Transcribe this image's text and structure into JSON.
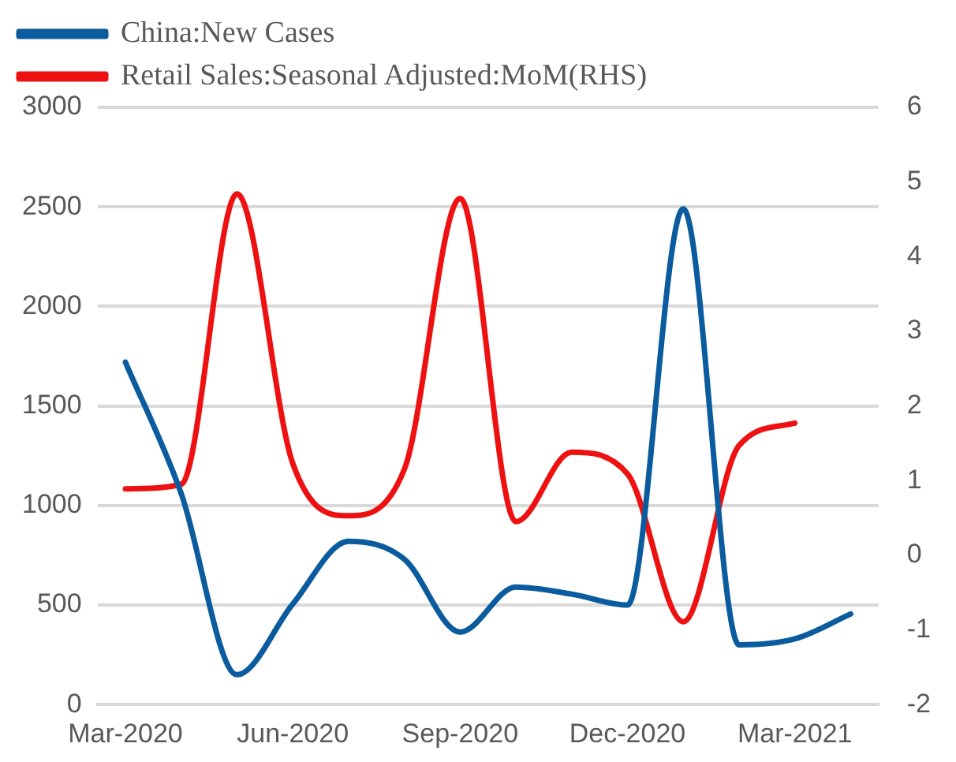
{
  "chart_data": {
    "type": "line",
    "categories": [
      "Mar-2020",
      null,
      null,
      "Jun-2020",
      null,
      null,
      "Sep-2020",
      null,
      null,
      "Dec-2020",
      null,
      null,
      "Mar-2021",
      null
    ],
    "series": [
      {
        "name": "China:New Cases",
        "color": "#0b5c9e",
        "values": [
          1720,
          1060,
          150,
          505,
          820,
          730,
          364,
          590,
          555,
          500,
          2490,
          300,
          330,
          455
        ]
      },
      {
        "name": "Retail Sales:Seasonal Adjusted:MoM(RHS)",
        "color": "#ee1111",
        "axis": "y2",
        "values": [
          0.89,
          0.95,
          4.84,
          1.23,
          0.53,
          1.15,
          4.78,
          0.45,
          1.38,
          1.09,
          -0.89,
          1.47,
          1.77,
          null
        ]
      }
    ],
    "ylim": [
      0,
      3000
    ],
    "yticks": [
      0,
      500,
      1000,
      1500,
      2000,
      2500,
      3000
    ],
    "y2lim": [
      -2,
      6
    ],
    "y2ticks": [
      -2,
      -1,
      0,
      1,
      2,
      3,
      4,
      5,
      6
    ],
    "grid": "y",
    "legend": "top left",
    "marker": "none",
    "line_style": "solid"
  }
}
